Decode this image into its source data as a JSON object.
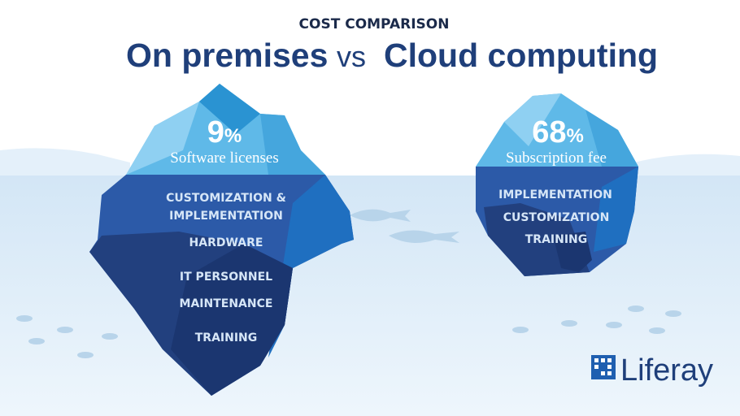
{
  "header": {
    "kicker": "COST COMPARISON",
    "title_left": "On premises",
    "title_vs": "vs",
    "title_right": "Cloud computing"
  },
  "icebergs": [
    {
      "percent": {
        "value": 9,
        "unit": "%"
      },
      "above": "Software licenses",
      "below": [
        "CUSTOMIZATION &",
        "IMPLEMENTATION",
        "HARDWARE",
        "IT PERSONNEL",
        "MAINTENANCE",
        "TRAINING"
      ]
    },
    {
      "percent": {
        "value": 68,
        "unit": "%"
      },
      "above": "Subscription fee",
      "below": [
        "IMPLEMENTATION",
        "CUSTOMIZATION",
        "TRAINING"
      ]
    }
  ],
  "logo": "Liferay"
}
